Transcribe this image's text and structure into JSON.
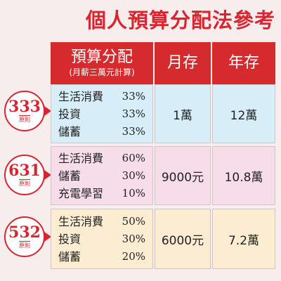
{
  "title": "個人預算分配法參考",
  "header": {
    "allocation": "預算分配",
    "allocation_sub": "(月薪三萬元計算)",
    "monthly": "月存",
    "yearly": "年存"
  },
  "plans": [
    {
      "rule": "333",
      "rule_label": "原則",
      "items": [
        {
          "name": "生活消費",
          "pct": "33%"
        },
        {
          "name": "投資",
          "pct": "33%"
        },
        {
          "name": "儲蓄",
          "pct": "33%"
        }
      ],
      "monthly": "1萬",
      "yearly": "12萬"
    },
    {
      "rule": "631",
      "rule_label": "原則",
      "items": [
        {
          "name": "生活消費",
          "pct": "60%"
        },
        {
          "name": "儲蓄",
          "pct": "30%"
        },
        {
          "name": "充電學習",
          "pct": "10%"
        }
      ],
      "monthly": "9000元",
      "yearly": "10.8萬"
    },
    {
      "rule": "532",
      "rule_label": "原則",
      "items": [
        {
          "name": "生活消費",
          "pct": "50%"
        },
        {
          "name": "投資",
          "pct": "30%"
        },
        {
          "name": "儲蓄",
          "pct": "20%"
        }
      ],
      "monthly": "6000元",
      "yearly": "7.2萬"
    }
  ],
  "colors": {
    "accent": "#d52b2e",
    "row1": "#d7eef9",
    "row2": "#f7dcea",
    "row3": "#fbecd2"
  }
}
